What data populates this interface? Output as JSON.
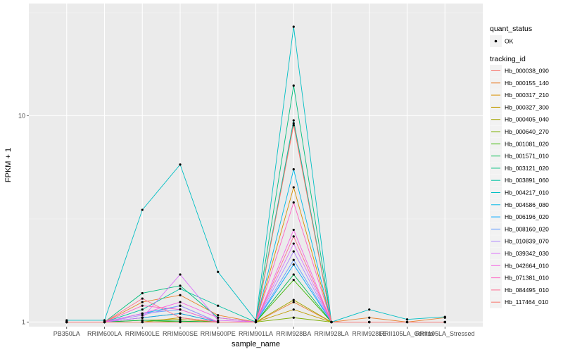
{
  "chart_data": {
    "type": "line",
    "title": "",
    "xlabel": "sample_name",
    "ylabel": "FPKM + 1",
    "yscale": "log10",
    "ylim": [
      0.95,
      35
    ],
    "y_ticks": [
      {
        "value": 1,
        "label": "1"
      },
      {
        "value": 10,
        "label": "10"
      }
    ],
    "grid": true,
    "legend_position": "right",
    "categories": [
      "PB350LA",
      "RRIM600LA",
      "RRIM600LE",
      "RRIM600SE",
      "RRIM600PE",
      "RRIM901LA",
      "RRIM928BA",
      "RRIM928LA",
      "RRIM928LE",
      "RRII105LA_Control",
      "RRII105LA_Stressed"
    ],
    "point_legend": {
      "title": "quant_status",
      "entries": [
        "OK"
      ]
    },
    "series_legend_title": "tracking_id",
    "series": [
      {
        "name": "Hb_000038_090",
        "color": "#F8766D",
        "values": [
          1.0,
          1.0,
          1.0,
          1.0,
          1.0,
          1.0,
          9.2,
          1.0,
          1.0,
          1.0,
          1.0
        ]
      },
      {
        "name": "Hb_000155_140",
        "color": "#EA8331",
        "values": [
          1.0,
          1.0,
          1.25,
          1.35,
          1.08,
          1.0,
          1.25,
          1.0,
          1.05,
          1.0,
          1.05
        ]
      },
      {
        "name": "Hb_000317_210",
        "color": "#D89000",
        "values": [
          1.0,
          1.0,
          1.05,
          1.1,
          1.0,
          1.0,
          4.5,
          1.0,
          1.0,
          1.0,
          1.0
        ]
      },
      {
        "name": "Hb_000327_300",
        "color": "#C09B00",
        "values": [
          1.0,
          1.0,
          1.0,
          1.05,
          1.0,
          1.0,
          1.15,
          1.0,
          1.0,
          1.0,
          1.0
        ]
      },
      {
        "name": "Hb_000405_040",
        "color": "#A3A500",
        "values": [
          1.0,
          1.0,
          1.02,
          1.03,
          1.0,
          1.0,
          1.28,
          1.0,
          1.0,
          1.0,
          1.0
        ]
      },
      {
        "name": "Hb_000640_270",
        "color": "#7CAE00",
        "values": [
          1.0,
          1.0,
          1.0,
          1.0,
          1.0,
          1.0,
          1.05,
          1.0,
          1.0,
          1.0,
          1.0
        ]
      },
      {
        "name": "Hb_001081_020",
        "color": "#39B600",
        "values": [
          1.0,
          1.0,
          1.0,
          1.01,
          1.0,
          1.0,
          1.6,
          1.0,
          1.0,
          1.0,
          1.0
        ]
      },
      {
        "name": "Hb_001571_010",
        "color": "#00BB4E",
        "values": [
          1.0,
          1.0,
          1.02,
          1.01,
          1.0,
          1.0,
          1.7,
          1.0,
          1.0,
          1.0,
          1.0
        ]
      },
      {
        "name": "Hb_003121_020",
        "color": "#00BF7D",
        "values": [
          1.0,
          1.0,
          1.38,
          1.5,
          1.05,
          1.0,
          14.0,
          1.0,
          1.0,
          1.0,
          1.0
        ]
      },
      {
        "name": "Hb_003891_060",
        "color": "#00C1A3",
        "values": [
          1.0,
          1.0,
          1.15,
          1.45,
          1.2,
          1.0,
          9.5,
          1.0,
          1.0,
          1.0,
          1.0
        ]
      },
      {
        "name": "Hb_004217_010",
        "color": "#00BFC4",
        "values": [
          1.02,
          1.02,
          3.5,
          5.8,
          1.75,
          1.02,
          27.0,
          1.0,
          1.15,
          1.03,
          1.06
        ]
      },
      {
        "name": "Hb_004586_080",
        "color": "#00B8E7",
        "values": [
          1.0,
          1.0,
          1.1,
          1.2,
          1.0,
          1.0,
          5.5,
          1.0,
          1.0,
          1.0,
          1.0
        ]
      },
      {
        "name": "Hb_006196_020",
        "color": "#00A9FF",
        "values": [
          1.0,
          1.0,
          1.05,
          1.1,
          1.0,
          1.0,
          1.9,
          1.0,
          1.0,
          1.0,
          1.0
        ]
      },
      {
        "name": "Hb_008160_020",
        "color": "#619CFF",
        "values": [
          1.0,
          1.0,
          1.1,
          1.15,
          1.0,
          1.0,
          2.0,
          1.0,
          1.0,
          1.0,
          1.0
        ]
      },
      {
        "name": "Hb_010839_070",
        "color": "#AE87FF",
        "values": [
          1.0,
          1.0,
          1.08,
          1.2,
          1.0,
          1.0,
          2.2,
          1.0,
          1.0,
          1.0,
          1.0
        ]
      },
      {
        "name": "Hb_039342_030",
        "color": "#DB72FB",
        "values": [
          1.0,
          1.0,
          1.05,
          1.7,
          1.02,
          1.0,
          2.4,
          1.0,
          1.0,
          1.0,
          1.0
        ]
      },
      {
        "name": "Hb_042664_010",
        "color": "#F564E3",
        "values": [
          1.0,
          1.0,
          1.1,
          1.25,
          1.05,
          1.0,
          2.8,
          1.0,
          1.0,
          1.0,
          1.0
        ]
      },
      {
        "name": "Hb_071381_010",
        "color": "#FF61C3",
        "values": [
          1.0,
          1.0,
          1.2,
          1.15,
          1.0,
          1.0,
          3.8,
          1.0,
          1.0,
          1.0,
          1.0
        ]
      },
      {
        "name": "Hb_084495_010",
        "color": "#FF6C91",
        "values": [
          1.0,
          1.0,
          1.3,
          1.05,
          1.0,
          1.0,
          2.6,
          1.0,
          1.0,
          1.0,
          1.0
        ]
      },
      {
        "name": "Hb_117464_010",
        "color": "#F8766D",
        "values": [
          1.0,
          1.0,
          1.0,
          1.0,
          1.0,
          1.0,
          9.0,
          1.0,
          1.0,
          1.0,
          1.0
        ]
      }
    ]
  }
}
